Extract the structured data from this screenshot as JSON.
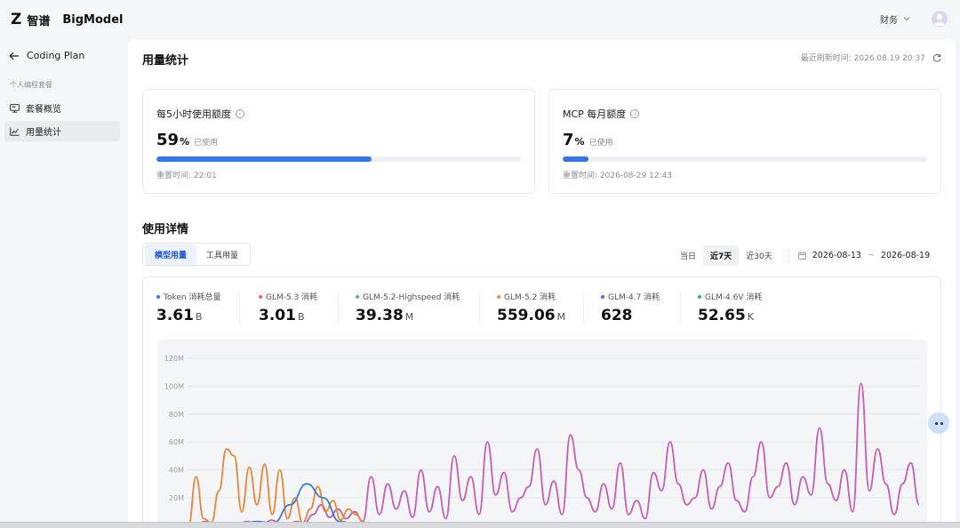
{
  "brand": {
    "mark": "Z",
    "name_cn": "智谱",
    "name_en": "BigModel"
  },
  "header": {
    "user_name": "财务"
  },
  "sidebar": {
    "back_label": "Coding Plan",
    "group_label": "个人编程套餐",
    "items": [
      {
        "label": "套餐概览",
        "icon": "monitor-icon",
        "active": false
      },
      {
        "label": "用量统计",
        "icon": "chart-icon",
        "active": true
      }
    ]
  },
  "main": {
    "title": "用量统计",
    "refresh_label": "最近刷新时间:",
    "refresh_time": "2026.08.19 20:37"
  },
  "quota_cards": [
    {
      "title": "每5小时使用额度",
      "percent": "59",
      "percent_sign": "%",
      "used_label": "已使用",
      "progress": 0.59,
      "reset_label": "重置时间:",
      "reset_time": "22:01"
    },
    {
      "title": "MCP 每月额度",
      "percent": "7",
      "percent_sign": "%",
      "used_label": "已使用",
      "progress": 0.07,
      "reset_label": "重置时间:",
      "reset_time": "2026-08-29 12:43"
    }
  ],
  "details": {
    "title": "使用详情",
    "tabs": [
      {
        "label": "模型用量",
        "active": true
      },
      {
        "label": "工具用量",
        "active": false
      }
    ],
    "ranges": [
      {
        "label": "当日",
        "active": false
      },
      {
        "label": "近7天",
        "active": true
      },
      {
        "label": "近30天",
        "active": false
      }
    ],
    "date_start": "2026-08-13",
    "date_sep": "~",
    "date_end": "2026-08-19"
  },
  "stats": [
    {
      "label": "Token 消耗总量",
      "value": "3.61",
      "unit": "B",
      "color": "#3874e8"
    },
    {
      "label": "GLM-5.3 消耗",
      "value": "3.01",
      "unit": "B",
      "color": "#e8697a"
    },
    {
      "label": "GLM-5.2-Highspeed 消耗",
      "value": "39.38",
      "unit": "M",
      "color": "#3fbf9a"
    },
    {
      "label": "GLM-5.2 消耗",
      "value": "559.06",
      "unit": "M",
      "color": "#f08a3c"
    },
    {
      "label": "GLM-4.7 消耗",
      "value": "628",
      "unit": "",
      "color": "#6a5be6"
    },
    {
      "label": "GLM-4.6V 消耗",
      "value": "52.65",
      "unit": "K",
      "color": "#36b36a"
    }
  ],
  "chart_data": {
    "type": "line",
    "y_ticks": [
      "120M",
      "100M",
      "80M",
      "60M",
      "40M",
      "20M"
    ],
    "ylim": [
      0,
      120
    ],
    "series": [
      {
        "name": "GLM-5.3 消耗",
        "color": "#c95fb4",
        "values": [
          2,
          1,
          3,
          2,
          1,
          2,
          1,
          3,
          2,
          1,
          4,
          2,
          1,
          3,
          2,
          8,
          15,
          6,
          12,
          5,
          10,
          3,
          35,
          8,
          30,
          12,
          25,
          6,
          40,
          10,
          28,
          5,
          50,
          18,
          35,
          8,
          60,
          22,
          38,
          10,
          20,
          28,
          55,
          15,
          32,
          8,
          65,
          40,
          20,
          10,
          30,
          12,
          45,
          8,
          18,
          5,
          38,
          25,
          60,
          30,
          15,
          20,
          40,
          12,
          28,
          45,
          18,
          10,
          35,
          60,
          20,
          28,
          45,
          15,
          35,
          22,
          70,
          30,
          18,
          40,
          10,
          102,
          25,
          55,
          30,
          8,
          30,
          45,
          15
        ]
      },
      {
        "name": "GLM-5.2 消耗",
        "color": "#e9863a",
        "values": [
          0,
          35,
          5,
          2,
          25,
          55,
          50,
          10,
          42,
          15,
          44,
          8,
          40,
          5,
          20,
          2,
          12,
          28,
          10,
          18,
          4,
          12,
          8,
          2
        ]
      },
      {
        "name": "GLM-5.2-Highspeed 消耗",
        "color": "#3a7bd5",
        "values": [
          0,
          2,
          1,
          3,
          2,
          15,
          30,
          20,
          3,
          1
        ]
      }
    ]
  }
}
